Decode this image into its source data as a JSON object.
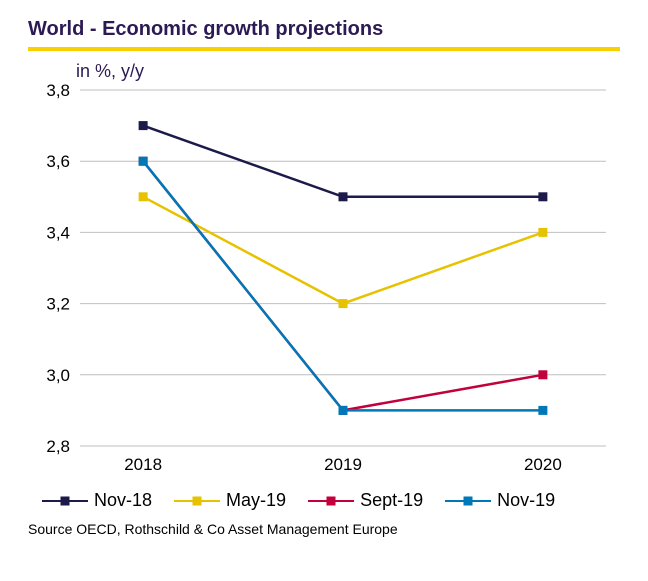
{
  "title": "World - Economic growth projections",
  "subtitle": "in %, y/y",
  "source": "Source OECD, Rothschild & Co Asset Management  Europe",
  "colors": {
    "title": "#2c1a55",
    "rule": "#f9d100",
    "subtitle": "#2c1a55",
    "axis_text": "#000000",
    "grid": "#bfbfbf",
    "background": "#ffffff"
  },
  "chart": {
    "type": "line",
    "x_categories": [
      "2018",
      "2019",
      "2020"
    ],
    "ylim": [
      2.8,
      3.8
    ],
    "ytick_step": 0.2,
    "yticks": [
      "2,8",
      "3,0",
      "3,2",
      "3,4",
      "3,6",
      "3,8"
    ],
    "axis_fontsize": 17,
    "line_width": 2.5,
    "marker_size": 9,
    "series": [
      {
        "name": "Nov-18",
        "color": "#1b1a4a",
        "values": [
          3.7,
          3.5,
          3.5
        ]
      },
      {
        "name": "May-19",
        "color": "#e6c200",
        "values": [
          3.5,
          3.2,
          3.4
        ]
      },
      {
        "name": "Sept-19",
        "color": "#c1003c",
        "values": [
          3.6,
          2.9,
          3.0
        ]
      },
      {
        "name": "Nov-19",
        "color": "#0077b6",
        "values": [
          3.6,
          2.9,
          2.9
        ]
      }
    ]
  }
}
